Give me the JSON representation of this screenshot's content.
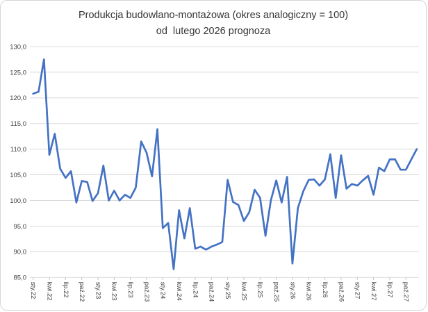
{
  "window": {
    "background_color": "#ffffff",
    "border_color": "#d6d6d6"
  },
  "chart_data": {
    "type": "line",
    "title": "Produkcja budowlano-montażowa (okres analogiczny = 100)",
    "subtitle": "od  lutego 2026 prognoza",
    "frequency": "monthly",
    "n_points": 72,
    "x_first_point_label": "sty.22",
    "x_label_every": 3,
    "x_tick_labels": [
      "sty.22",
      "kwi.22",
      "lip.22",
      "paź.22",
      "sty.23",
      "kwi.23",
      "lip.23",
      "paź.23",
      "sty.24",
      "kwi.24",
      "lip.24",
      "paź.24",
      "sty.25",
      "kwi.25",
      "lip.25",
      "paź.25",
      "sty.26",
      "kwi.26",
      "lip.26",
      "paź.26",
      "sty.27",
      "kwi.27",
      "lip.27",
      "paź.27"
    ],
    "y_tick_labels": [
      "130,0",
      "125,0",
      "120,0",
      "115,0",
      "110,0",
      "105,0",
      "100,0",
      "95,0",
      "90,0",
      "85,0"
    ],
    "ylim": [
      85,
      130
    ],
    "y_tick_step": 5,
    "grid": "horizontal",
    "legend": "none",
    "line_color": "#4472C4",
    "gridline_color": "#d9d9d9",
    "tick_color": "#bfbfbf",
    "text_color": "#404040",
    "values": [
      120.8,
      121.2,
      127.5,
      108.9,
      113.0,
      106.2,
      104.4,
      105.7,
      99.6,
      103.8,
      103.6,
      99.9,
      101.4,
      106.8,
      100.0,
      101.9,
      100.0,
      101.1,
      100.5,
      102.5,
      111.5,
      109.3,
      104.7,
      113.9,
      94.6,
      95.6,
      86.6,
      98.1,
      92.6,
      98.5,
      90.6,
      91.0,
      90.4,
      91.0,
      91.4,
      91.9,
      104.0,
      99.7,
      99.1,
      96.0,
      97.7,
      102.1,
      100.5,
      93.1,
      100.0,
      103.9,
      99.6,
      104.6,
      87.7,
      98.5,
      101.8,
      104.0,
      104.1,
      102.9,
      104.1,
      109.0,
      100.5,
      108.8,
      102.3,
      103.2,
      102.9,
      103.9,
      104.8,
      101.1,
      106.4,
      105.7,
      108.0,
      108.0,
      106.0,
      106.0,
      108.0,
      110.0
    ]
  }
}
